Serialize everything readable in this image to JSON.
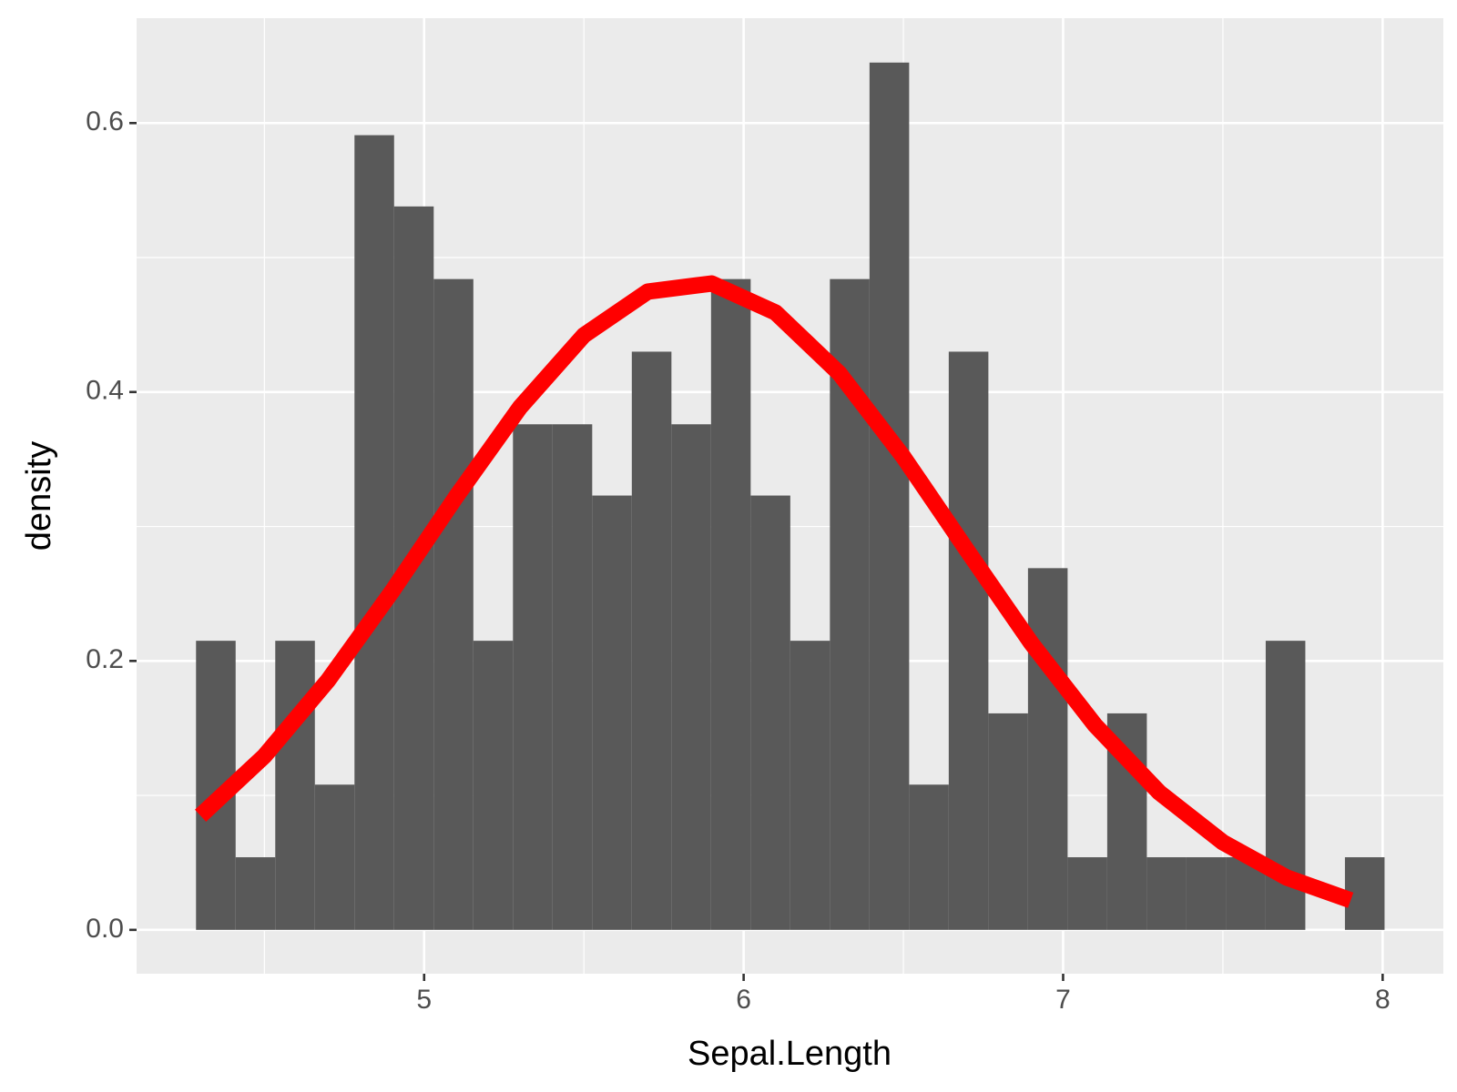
{
  "chart_data": {
    "type": "histogram",
    "x_label": "Sepal.Length",
    "y_label": "density",
    "bins": [
      4.286,
      4.41,
      4.534,
      4.658,
      4.782,
      4.906,
      5.03,
      5.154,
      5.278,
      5.402,
      5.526,
      5.65,
      5.774,
      5.898,
      6.022,
      6.146,
      6.27,
      6.394,
      6.518,
      6.642,
      6.766,
      6.89,
      7.014,
      7.138,
      7.262,
      7.386,
      7.51,
      7.634,
      7.758,
      7.882,
      8.006
    ],
    "values": [
      0.215,
      0.054,
      0.215,
      0.108,
      0.591,
      0.538,
      0.484,
      0.215,
      0.376,
      0.376,
      0.323,
      0.43,
      0.376,
      0.484,
      0.323,
      0.215,
      0.484,
      0.645,
      0.108,
      0.43,
      0.161,
      0.269,
      0.054,
      0.161,
      0.054,
      0.054,
      0.054,
      0.215,
      0,
      0.054
    ],
    "color": "#595959",
    "curve": {
      "color": "#ff0000",
      "x": [
        4.3,
        4.5,
        4.7,
        4.9,
        5.1,
        5.3,
        5.5,
        5.7,
        5.9,
        6.1,
        6.3,
        6.5,
        6.7,
        6.9,
        7.1,
        7.3,
        7.5,
        7.7,
        7.9
      ],
      "values": [
        0.0849,
        0.1293,
        0.1858,
        0.2519,
        0.3221,
        0.3886,
        0.4422,
        0.4747,
        0.4807,
        0.4591,
        0.4137,
        0.3517,
        0.282,
        0.2133,
        0.1522,
        0.1024,
        0.0651,
        0.0389,
        0.022
      ]
    },
    "xlim": [
      4.1,
      8.19
    ],
    "ylim": [
      -0.0326,
      0.678
    ],
    "xticks": [
      5,
      6,
      7,
      8
    ],
    "yticks": [
      {
        "value": 0,
        "label": "0.0"
      },
      0.2,
      0.4,
      0.6
    ],
    "xminor": [
      4.5,
      5.5,
      6.5,
      7.5
    ],
    "yminor": [
      0.1,
      0.3,
      0.5
    ],
    "grid": true
  }
}
